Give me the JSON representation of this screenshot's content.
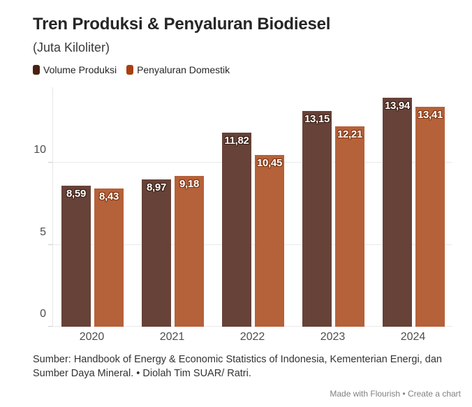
{
  "header": {
    "title": "Tren Produksi & Penyaluran Biodiesel",
    "subtitle": "(Juta Kiloliter)"
  },
  "chart_data": {
    "type": "bar",
    "title": "Tren Produksi & Penyaluran Biodiesel",
    "subtitle": "(Juta Kiloliter)",
    "unit": "Juta Kiloliter",
    "categories": [
      "2020",
      "2021",
      "2022",
      "2023",
      "2024"
    ],
    "series": [
      {
        "name": "Volume Produksi",
        "values": [
          8.59,
          8.97,
          11.82,
          13.15,
          13.94
        ],
        "labels": [
          "8,59",
          "8,97",
          "11,82",
          "13,15",
          "13,94"
        ],
        "color": "#664238",
        "legend_color": "#4a2211",
        "label_outline": "#3a1c12"
      },
      {
        "name": "Penyaluran Domestik",
        "values": [
          8.43,
          9.18,
          10.45,
          12.21,
          13.41
        ],
        "labels": [
          "8,43",
          "9,18",
          "10,45",
          "12,21",
          "13,41"
        ],
        "color": "#b5613a",
        "legend_color": "#a83f10",
        "label_outline": "#7f3410"
      }
    ],
    "y_axis": {
      "ticks": [
        0,
        5,
        10
      ],
      "tick_labels": [
        "0",
        "5",
        "10"
      ],
      "range": [
        0,
        14.6
      ],
      "gridlines": true
    },
    "legend_position": "top-left"
  },
  "footer": {
    "source": "Sumber: Handbook of Energy & Economic Statistics of Indonesia, Kementerian Energi, dan Sumber Daya Mineral. • Diolah Tim SUAR/ Ratri.",
    "attribution": {
      "made_with": "Made with Flourish",
      "separator": "•",
      "create_chart": "Create a chart"
    }
  },
  "colors": {
    "background": "#ffffff",
    "gridline": "#e9e9e9",
    "axis_text": "#4d4d4d",
    "title_text": "#262626",
    "bar_label_text": "#ffffff"
  }
}
